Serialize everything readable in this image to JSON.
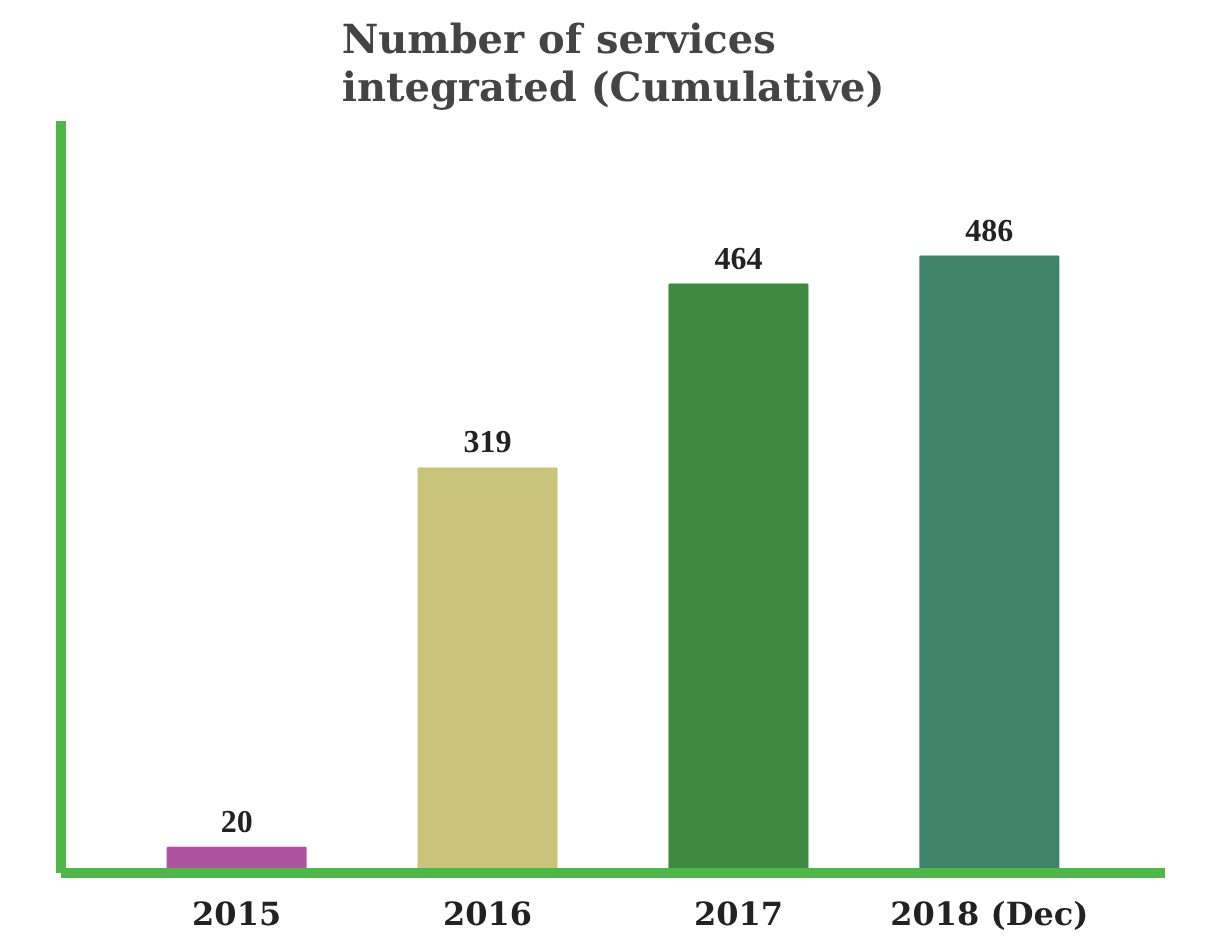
{
  "chart_data": {
    "type": "bar",
    "title": "Number of services\nintegrated (Cumulative)",
    "categories": [
      "2015",
      "2016",
      "2017",
      "2018 (Dec)"
    ],
    "values": [
      20,
      319,
      464,
      486
    ],
    "colors": [
      "#b052a0",
      "#c9c47a",
      "#3d8a40",
      "#3f846a"
    ],
    "data_labels": true,
    "grid": false,
    "tick_labels": "x"
  }
}
